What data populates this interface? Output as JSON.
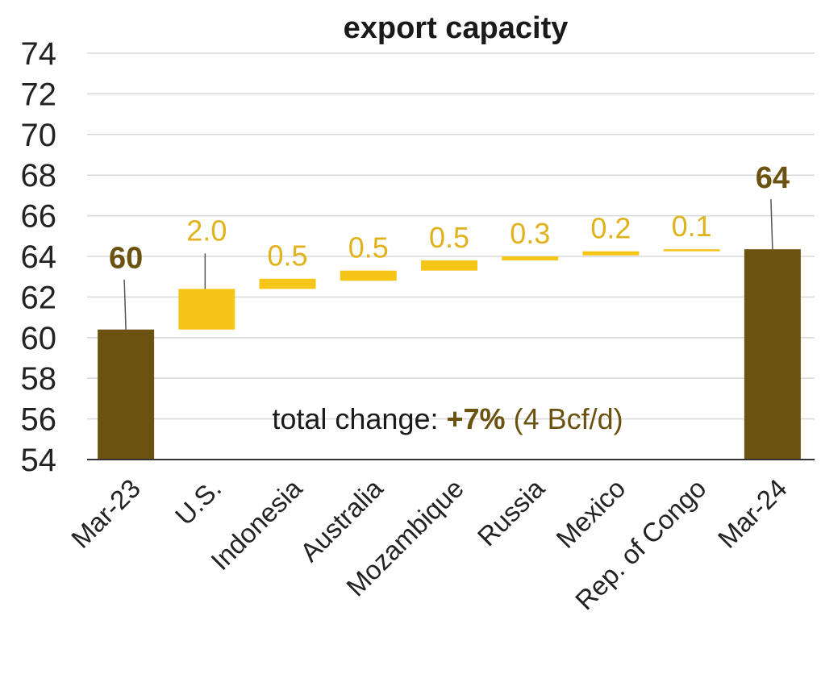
{
  "chart_data": {
    "type": "bar",
    "subtype": "waterfall",
    "title": "export capacity",
    "xlabel": "",
    "ylabel": "",
    "ylim": [
      54,
      74
    ],
    "yticks": [
      "54",
      "56",
      "58",
      "60",
      "62",
      "64",
      "66",
      "68",
      "70",
      "72",
      "74"
    ],
    "grid": true,
    "categories": [
      "Mar-23",
      "U.S.",
      "Indonesia",
      "Australia",
      "Mozambique",
      "Russia",
      "Mexico",
      "Rep. of Congo",
      "Mar-24"
    ],
    "bars": [
      {
        "category": "Mar-23",
        "kind": "total",
        "start": 54,
        "end": 60.4,
        "label": "60"
      },
      {
        "category": "U.S.",
        "kind": "increase",
        "start": 60.4,
        "end": 62.4,
        "label": "2.0"
      },
      {
        "category": "Indonesia",
        "kind": "increase",
        "start": 62.4,
        "end": 62.9,
        "label": "0.5"
      },
      {
        "category": "Australia",
        "kind": "increase",
        "start": 62.8,
        "end": 63.3,
        "label": "0.5"
      },
      {
        "category": "Mozambique",
        "kind": "increase",
        "start": 63.3,
        "end": 63.8,
        "label": "0.5"
      },
      {
        "category": "Russia",
        "kind": "increase",
        "start": 63.8,
        "end": 64.0,
        "label": "0.3"
      },
      {
        "category": "Mexico",
        "kind": "increase",
        "start": 64.05,
        "end": 64.25,
        "label": "0.2"
      },
      {
        "category": "Rep. of Congo",
        "kind": "increase",
        "start": 64.25,
        "end": 64.35,
        "label": "0.1"
      },
      {
        "category": "Mar-24",
        "kind": "total",
        "start": 54,
        "end": 64.35,
        "label": "64"
      }
    ],
    "annotation": {
      "prefix": "total change: ",
      "highlight": "+7%",
      "suffix": " (4 Bcf/d)"
    },
    "colors": {
      "total": "#6b5210",
      "increase": "#f5c518",
      "total_label": "#6b5210",
      "increase_label": "#e0b21c",
      "annotation_text": "#1a1a1a",
      "annotation_highlight": "#6b5210"
    }
  }
}
